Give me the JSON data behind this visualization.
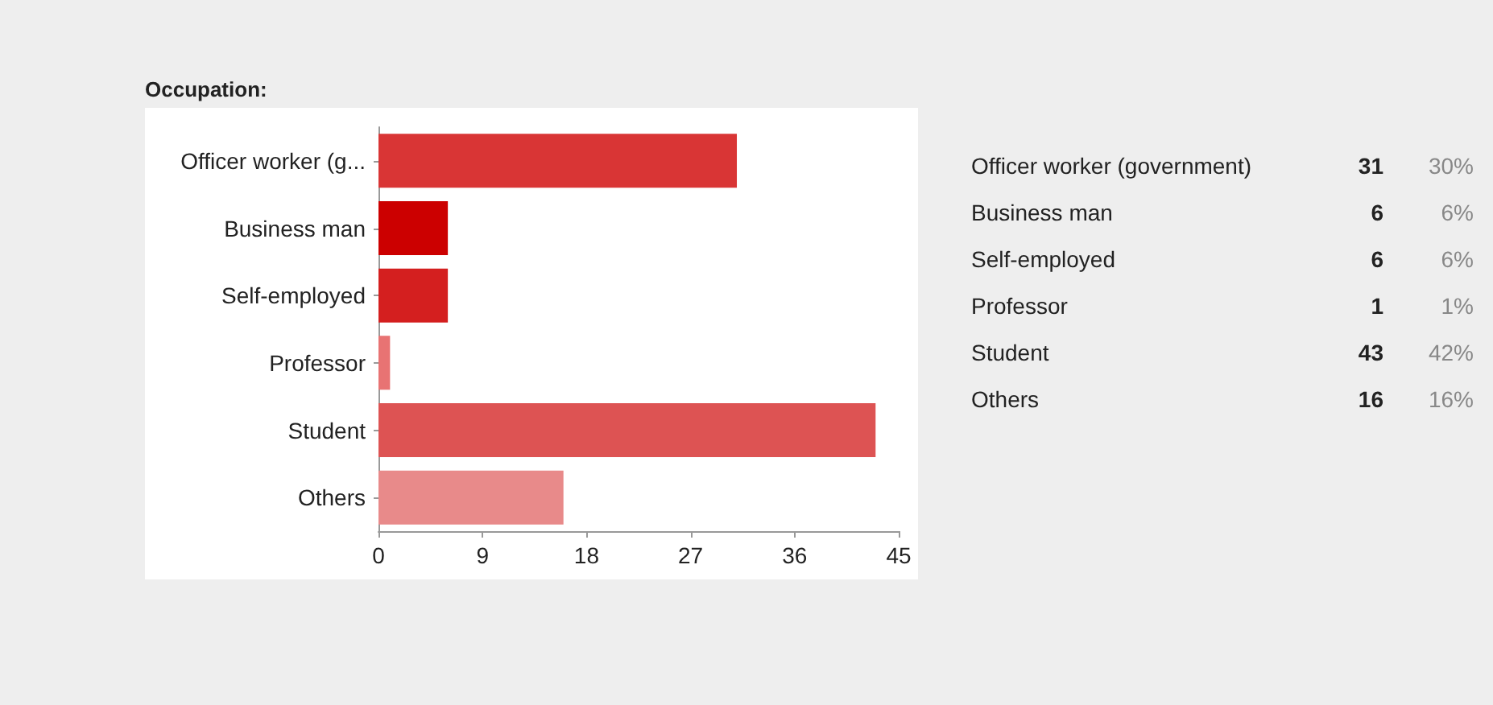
{
  "chart_data": {
    "type": "bar",
    "orientation": "horizontal",
    "title": "Occupation:",
    "categories": [
      "Officer worker (g...",
      "Business man",
      "Self-employed",
      "Professor",
      "Student",
      "Others"
    ],
    "values": [
      31,
      6,
      6,
      1,
      43,
      16
    ],
    "colors": [
      "#d93535",
      "#cc0000",
      "#d41f1f",
      "#e87373",
      "#dd5353",
      "#e88a8a"
    ],
    "xlim": [
      0,
      45
    ],
    "xticks": [
      0,
      9,
      18,
      27,
      36,
      45
    ],
    "grid": false,
    "annotations": [
      "Officer worker (government)",
      "31",
      "30%",
      "Business man",
      "6",
      "6%",
      "Self-employed",
      "6",
      "6%",
      "Professor",
      "1",
      "1%",
      "Student",
      "43",
      "42%",
      "Others",
      "16",
      "16%"
    ]
  }
}
